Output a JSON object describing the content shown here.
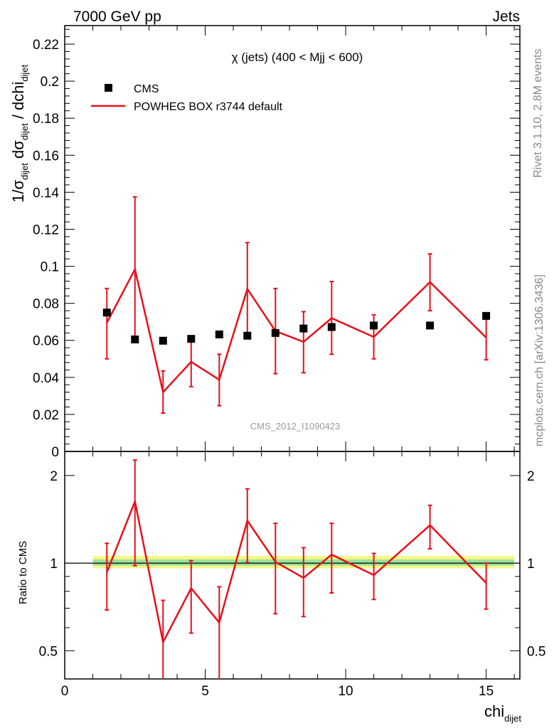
{
  "header": {
    "left": "7000 GeV pp",
    "right": "Jets"
  },
  "side_text": {
    "rivet": "Rivet 3.1.10,  2.8M events",
    "mcplots": "mcplots.cern.ch [arXiv:1306.3436]"
  },
  "watermark": "CMS_2012_I1090423",
  "chart_data": {
    "type": "line",
    "title": "χ (jets) (400 < Mjj <  600)",
    "legend": {
      "placement": "top-left",
      "entries": [
        {
          "label": "CMS",
          "marker": "square",
          "color": "#000000"
        },
        {
          "label": "POWHEG BOX r3744 default",
          "marker": "line",
          "color": "#e8101a"
        }
      ]
    },
    "xlabel": "chi",
    "xlabel_sub": "dijet",
    "x": [
      1.5,
      2.5,
      3.5,
      4.5,
      5.5,
      6.5,
      7.5,
      8.5,
      9.5,
      11,
      13,
      15
    ],
    "main": {
      "ylabel_parts": [
        "1/σ",
        "dijet",
        " dσ",
        "dijet",
        " / dchi",
        "dijet"
      ],
      "xlim": [
        0,
        16.2
      ],
      "ylim": [
        0,
        0.23
      ],
      "xticks": [
        0,
        5,
        10,
        15
      ],
      "yticks": [
        0,
        0.02,
        0.04,
        0.06,
        0.08,
        0.1,
        0.12,
        0.14,
        0.16,
        0.18,
        0.2,
        0.22
      ],
      "ytick_labels": [
        "0",
        "0.02",
        "0.04",
        "0.06",
        "0.08",
        "0.1",
        "0.12",
        "0.14",
        "0.16",
        "0.18",
        "0.2",
        "0.22"
      ],
      "series": [
        {
          "name": "CMS",
          "style": "marker",
          "values": [
            0.075,
            0.0605,
            0.0598,
            0.0608,
            0.0632,
            0.0625,
            0.064,
            0.0664,
            0.0672,
            0.068,
            0.068,
            0.0732
          ]
        },
        {
          "name": "POWHEG BOX r3744 default",
          "style": "line",
          "values": [
            0.0695,
            0.0984,
            0.032,
            0.0484,
            0.0387,
            0.0878,
            0.065,
            0.0592,
            0.072,
            0.0618,
            0.0915,
            0.0615
          ],
          "err_low": [
            0.05,
            0.0595,
            0.0207,
            0.035,
            0.0247,
            0.063,
            0.042,
            0.0425,
            0.0525,
            0.05,
            0.076,
            0.0495
          ],
          "err_high": [
            0.088,
            0.1375,
            0.0435,
            0.0605,
            0.0525,
            0.1128,
            0.088,
            0.0755,
            0.0918,
            0.0738,
            0.1067,
            0.0738
          ]
        }
      ]
    },
    "ratio": {
      "ylabel": "Ratio to CMS",
      "xlim": [
        0,
        16.2
      ],
      "ylim": [
        0.4,
        2.42
      ],
      "scale": "log",
      "yticks": [
        0.5,
        1,
        2
      ],
      "ytick_labels": [
        "0.5",
        "1",
        "2"
      ],
      "band_x": [
        1,
        16
      ],
      "band_yellow": [
        0.96,
        1.06
      ],
      "band_green": [
        0.98,
        1.03
      ],
      "ratio_values": [
        0.93,
        1.63,
        0.535,
        0.82,
        0.625,
        1.4,
        1.01,
        0.89,
        1.07,
        0.91,
        1.35,
        0.855
      ],
      "ratio_err_low": [
        0.69,
        0.98,
        0.345,
        0.575,
        0.39,
        1.005,
        0.67,
        0.655,
        0.79,
        0.75,
        1.12,
        0.695
      ],
      "ratio_err_high": [
        1.17,
        2.26,
        0.745,
        1.02,
        0.83,
        1.8,
        1.37,
        1.13,
        1.37,
        1.08,
        1.58,
        1.0
      ]
    }
  }
}
